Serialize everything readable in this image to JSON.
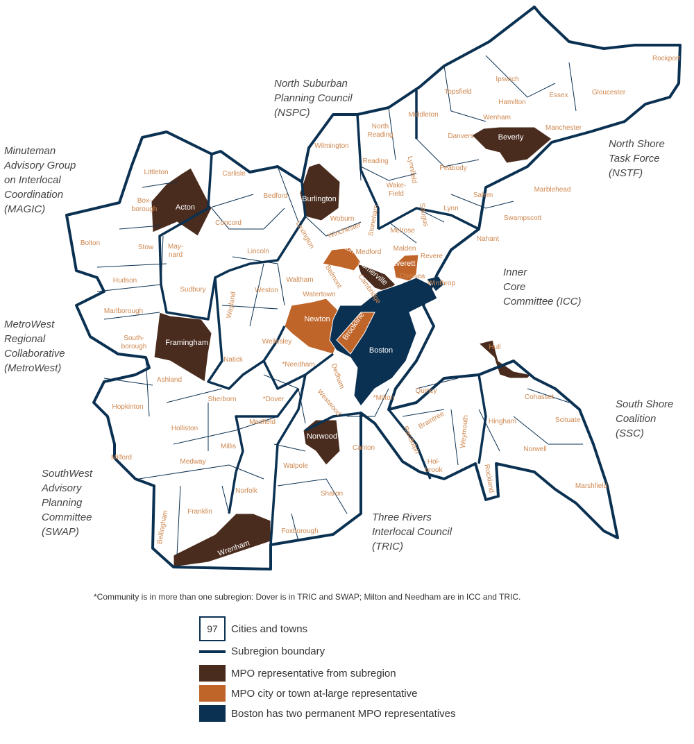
{
  "colors": {
    "subregion_rep": "#4a2c1e",
    "at_large": "#c0652a",
    "boston": "#0b3152",
    "boundary": "#0b3152",
    "town_label": "#cf8850"
  },
  "subregions": [
    [
      "North Suburban",
      "Planning Council",
      "(NSPC)"
    ],
    [
      "Minuteman",
      "Advisory Group",
      "on Interlocal",
      "Coordination",
      "(MAGIC)"
    ],
    [
      "North Shore",
      "Task Force",
      "(NSTF)"
    ],
    [
      "Inner",
      "Core",
      "Committee (ICC)"
    ],
    [
      "MetroWest",
      "Regional",
      "Collaborative",
      "(MetroWest)"
    ],
    [
      "South Shore",
      "Coalition",
      "(SSC)"
    ],
    [
      "SouthWest",
      "Advisory",
      "Planning",
      "Committee",
      "(SWAP)"
    ],
    [
      "Three Rivers",
      "Interlocal Council",
      "(TRIC)"
    ]
  ],
  "towns": [
    "Ipswich",
    "Rockport",
    "Topsfield",
    "Hamilton",
    "Essex",
    "Gloucester",
    "Middleton",
    "Wenham",
    "North Reading",
    "Danvers",
    "Beverly",
    "Manchester",
    "Wilmington",
    "Reading",
    "Lynnfield",
    "Peabody",
    "Littleton",
    "Carlisle",
    "Bedford",
    "Burlington",
    "Wake-Field",
    "Marblehead",
    "Salem",
    "Acton",
    "Box-borough",
    "Concord",
    "Woburn",
    "Saugus",
    "Lynn",
    "Stoneham",
    "Swampscott",
    "Bolton",
    "Stow",
    "May-nard",
    "Lincoln",
    "Lexington",
    "Winchester",
    "Melrose",
    "Nahant",
    "Medford",
    "Malden",
    "Arlington",
    "Everett",
    "Revere",
    "Hudson",
    "Waltham",
    "Belmont",
    "Somerville",
    "Chelsea",
    "Winthrop",
    "Sudbury",
    "Cambridge",
    "Watertown",
    "Weston",
    "Wayland",
    "Marlborough",
    "Newton",
    "Brookline",
    "South-borough",
    "Framingham",
    "Wellesley",
    "Natick",
    "Boston",
    "*Needham",
    "Hull",
    "Ashland",
    "Dedham",
    "Westwood",
    "Quincy",
    "*Milton",
    "Cohasset",
    "Hopkinton",
    "Sherborn",
    "*Dover",
    "Holliston",
    "Medfield",
    "Norwood",
    "Braintree",
    "Weymouth",
    "Hingham",
    "Scituate",
    "Milford",
    "Millis",
    "Canton",
    "Randolph",
    "Norwell",
    "Medway",
    "Walpole",
    "Hol-brook",
    "Rockland",
    "Norfolk",
    "Sharon",
    "Marshfield",
    "Franklin",
    "Bellingham",
    "Wrenham",
    "Foxborough"
  ],
  "footnote": "*Community is in more than one subregion: Dover is in TRIC and SWAP; Milton and Needham are in ICC and TRIC.",
  "legend": {
    "count": "97",
    "count_label": "Cities and towns",
    "boundary_label": "Subregion boundary",
    "subregion_rep_label": "MPO representative from subregion",
    "at_large_label": "MPO city or town at-large representative",
    "boston_label": "Boston has two permanent MPO representatives"
  }
}
